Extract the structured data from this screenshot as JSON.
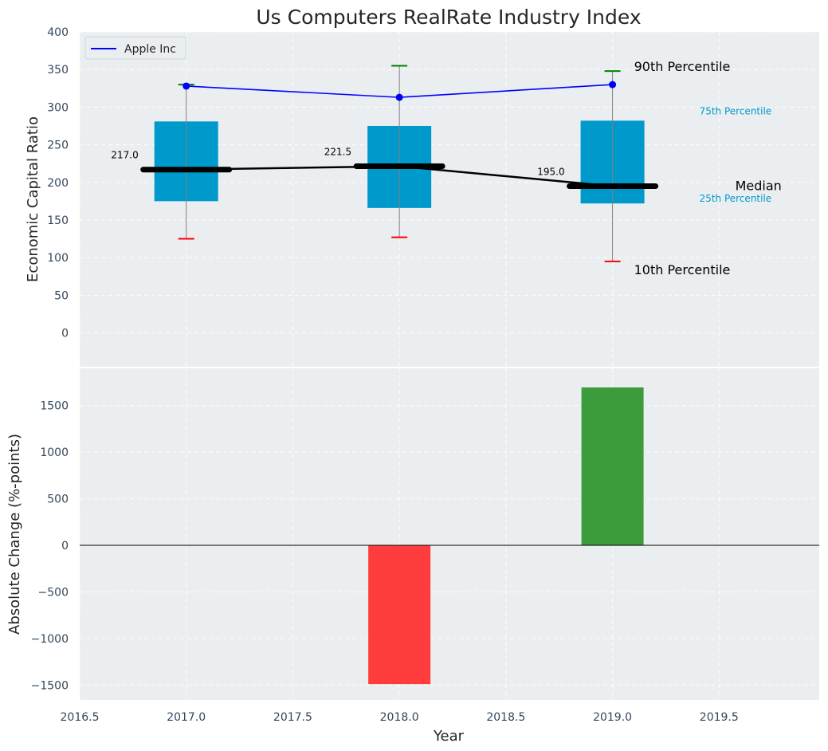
{
  "chart_data": [
    {
      "type": "box",
      "title": "Us Computers RealRate Industry Index",
      "xlabel": "",
      "ylabel": "Economic Capital Ratio",
      "ylim": [
        -45,
        400
      ],
      "yticks": [
        0,
        50,
        100,
        150,
        200,
        250,
        300,
        350,
        400
      ],
      "xlim": [
        2016.5,
        2019.97
      ],
      "grid": true,
      "legend": {
        "position": "upper-left",
        "entries": [
          "Apple Inc"
        ]
      },
      "box_stats": [
        {
          "x": 2017,
          "p10": 125,
          "p25": 175,
          "median": 217.0,
          "p75": 281,
          "p90": 330
        },
        {
          "x": 2018,
          "p10": 127,
          "p25": 166,
          "median": 221.5,
          "p75": 275,
          "p90": 355
        },
        {
          "x": 2019,
          "p10": 95,
          "p25": 172,
          "median": 195.0,
          "p75": 282,
          "p90": 348
        }
      ],
      "median_labels": [
        "217.0",
        "221.5",
        "195.0"
      ],
      "series": [
        {
          "name": "Apple Inc",
          "color": "#0000ff",
          "x": [
            2017,
            2018,
            2019
          ],
          "values": [
            328,
            313,
            330
          ]
        }
      ],
      "annotations": {
        "p90": "90th Percentile",
        "p75": "75th Percentile",
        "median": "Median",
        "p25": "25th Percentile",
        "p10": "10th Percentile"
      },
      "colors": {
        "box": "#0099cc",
        "median_line": "#000000",
        "p90_cap": "#008000",
        "p10_cap": "#ff0000",
        "whisker": "#808080",
        "background": "#eaeef0"
      }
    },
    {
      "type": "bar",
      "xlabel": "Year",
      "ylabel": "Absolute Change (%-points)",
      "ylim": [
        -1660,
        1900
      ],
      "yticks": [
        -1500,
        -1000,
        -500,
        0,
        500,
        1000,
        1500
      ],
      "xlim": [
        2016.5,
        2019.97
      ],
      "xticks": [
        2016.5,
        2017.0,
        2017.5,
        2018.0,
        2018.5,
        2019.0,
        2019.5
      ],
      "x": [
        2018,
        2019
      ],
      "values": [
        -1490,
        1695
      ],
      "colors": {
        "negative": "#ff3c3c",
        "positive": "#3c9c3c"
      },
      "grid": true
    }
  ]
}
